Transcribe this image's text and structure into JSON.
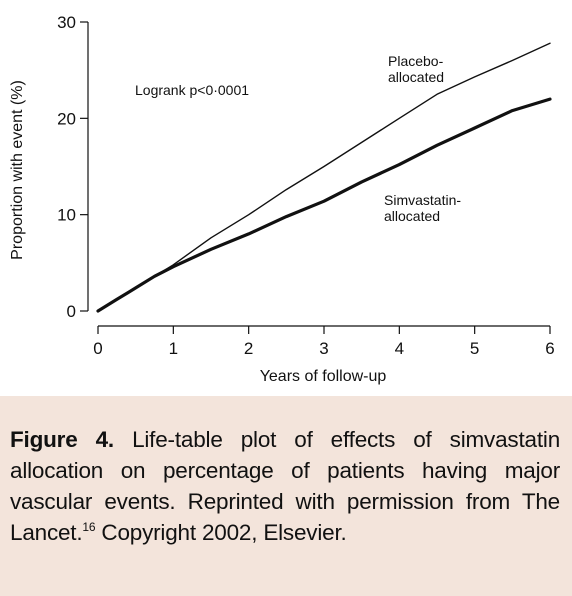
{
  "chart_data": {
    "type": "line",
    "title": "",
    "xlabel": "Years of follow-up",
    "ylabel": "Proportion with event (%)",
    "xlim": [
      0,
      6
    ],
    "ylim": [
      0,
      30
    ],
    "x_ticks": [
      0,
      1,
      2,
      3,
      4,
      5,
      6
    ],
    "y_ticks": [
      0,
      10,
      20,
      30
    ],
    "grid": false,
    "legend": "none",
    "annotations": {
      "pvalue": "Logrank p<0·0001",
      "placebo_line1": "Placebo-",
      "placebo_line2": "allocated",
      "simva_line1": "Simvastatin-",
      "simva_line2": "allocated"
    },
    "series": [
      {
        "color": "#111111",
        "x": [
          0,
          0.25,
          0.5,
          0.75,
          1,
          1.5,
          2,
          2.5,
          3,
          3.5,
          4,
          4.5,
          5,
          5.5,
          6
        ],
        "values": [
          0,
          1.2,
          2.4,
          3.6,
          4.8,
          7.6,
          10.0,
          12.6,
          15.0,
          17.5,
          20.0,
          22.5,
          24.3,
          26.0,
          27.8
        ]
      },
      {
        "color": "#111111",
        "x": [
          0,
          0.25,
          0.5,
          0.75,
          1,
          1.5,
          2,
          2.5,
          3,
          3.5,
          4,
          4.5,
          5,
          5.5,
          6
        ],
        "values": [
          0,
          1.2,
          2.4,
          3.6,
          4.6,
          6.4,
          8.0,
          9.8,
          11.4,
          13.4,
          15.2,
          17.2,
          19.0,
          20.8,
          22.0
        ]
      }
    ]
  },
  "caption": {
    "label": "Figure 4.",
    "text": " Life-table plot of effects of simvastatin allocation on percentage of patients having major vascular events. Reprinted with permission from The Lancet.",
    "ref": "16",
    "tail": " Copyright 2002, Elsevier."
  }
}
